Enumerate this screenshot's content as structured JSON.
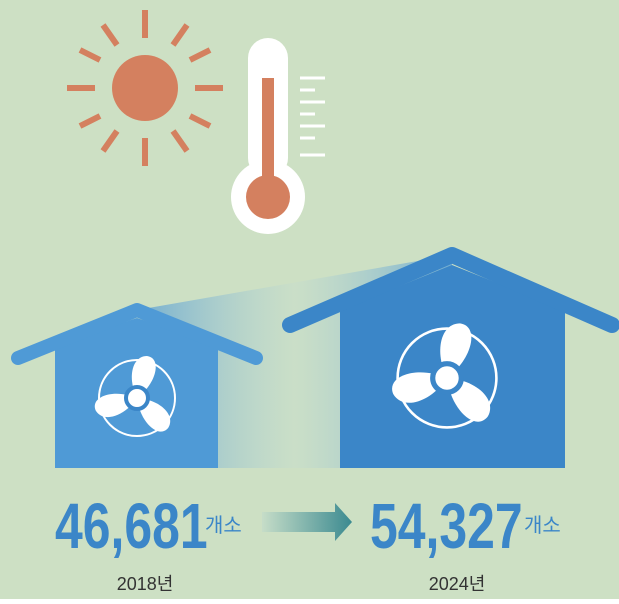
{
  "items": [
    {
      "value": "46,681",
      "unit": "개소",
      "year": "2018년"
    },
    {
      "value": "54,327",
      "unit": "개소",
      "year": "2024년"
    }
  ]
}
